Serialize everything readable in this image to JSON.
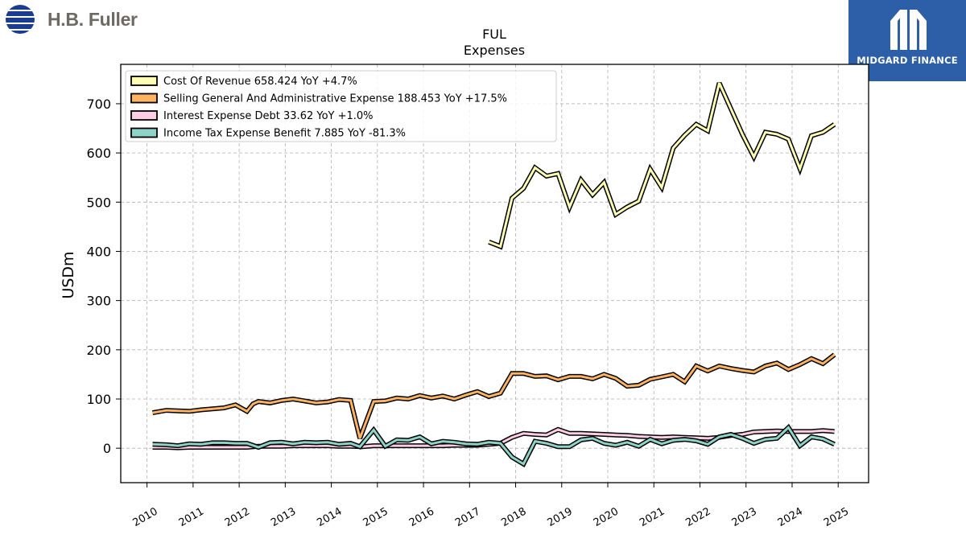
{
  "brand": {
    "name": "H.B. Fuller",
    "badge": "MIDGARD FINANCE",
    "logo_color": "#1a3d8f",
    "badge_color": "#2d5fa8"
  },
  "chart_data": {
    "type": "line",
    "title": "FUL",
    "subtitle": "Expenses",
    "ylabel": "USDm",
    "xlabel": "",
    "xlim": [
      2009.43,
      2025.66
    ],
    "ylim": [
      -70,
      780
    ],
    "yticks": [
      0,
      100,
      200,
      300,
      400,
      500,
      600,
      700
    ],
    "xticks": [
      2010,
      2011,
      2012,
      2013,
      2014,
      2015,
      2016,
      2017,
      2018,
      2019,
      2020,
      2021,
      2022,
      2023,
      2024,
      2025
    ],
    "grid": true,
    "legend_position": "top-left",
    "series": [
      {
        "name": "Cost Of Revenue",
        "legend": "Cost Of Revenue  658.424 YoY +4.7%",
        "color": "#ffffb3",
        "points": [
          [
            2017.42,
            419
          ],
          [
            2017.67,
            410
          ],
          [
            2017.92,
            508
          ],
          [
            2018.17,
            528
          ],
          [
            2018.42,
            570
          ],
          [
            2018.67,
            553
          ],
          [
            2018.92,
            558
          ],
          [
            2019.17,
            490
          ],
          [
            2019.42,
            545
          ],
          [
            2019.67,
            515
          ],
          [
            2019.92,
            540
          ],
          [
            2020.17,
            475
          ],
          [
            2020.42,
            490
          ],
          [
            2020.67,
            502
          ],
          [
            2020.92,
            567
          ],
          [
            2021.17,
            530
          ],
          [
            2021.42,
            610
          ],
          [
            2021.67,
            636
          ],
          [
            2021.92,
            658
          ],
          [
            2022.17,
            645
          ],
          [
            2022.42,
            742
          ],
          [
            2022.67,
            690
          ],
          [
            2022.92,
            638
          ],
          [
            2023.17,
            592
          ],
          [
            2023.42,
            642
          ],
          [
            2023.67,
            638
          ],
          [
            2023.92,
            628
          ],
          [
            2024.17,
            568
          ],
          [
            2024.42,
            635
          ],
          [
            2024.67,
            642
          ],
          [
            2024.92,
            658
          ]
        ]
      },
      {
        "name": "Selling General And Administrative Expense",
        "legend": "Selling General And Administrative Expense  188.453 YoY +17.5%",
        "color": "#fdb462",
        "points": [
          [
            2010.12,
            72
          ],
          [
            2010.42,
            77
          ],
          [
            2010.67,
            76
          ],
          [
            2010.92,
            75
          ],
          [
            2011.17,
            78
          ],
          [
            2011.42,
            80
          ],
          [
            2011.67,
            82
          ],
          [
            2011.92,
            88
          ],
          [
            2012.17,
            75
          ],
          [
            2012.3,
            90
          ],
          [
            2012.42,
            95
          ],
          [
            2012.67,
            92
          ],
          [
            2012.92,
            97
          ],
          [
            2013.17,
            100
          ],
          [
            2013.42,
            96
          ],
          [
            2013.67,
            92
          ],
          [
            2013.92,
            94
          ],
          [
            2014.17,
            99
          ],
          [
            2014.42,
            97
          ],
          [
            2014.62,
            20
          ],
          [
            2014.92,
            95
          ],
          [
            2015.17,
            96
          ],
          [
            2015.42,
            102
          ],
          [
            2015.67,
            100
          ],
          [
            2015.92,
            107
          ],
          [
            2016.17,
            102
          ],
          [
            2016.42,
            106
          ],
          [
            2016.67,
            100
          ],
          [
            2016.92,
            108
          ],
          [
            2017.17,
            115
          ],
          [
            2017.42,
            105
          ],
          [
            2017.67,
            112
          ],
          [
            2017.92,
            152
          ],
          [
            2018.17,
            152
          ],
          [
            2018.42,
            146
          ],
          [
            2018.67,
            147
          ],
          [
            2018.92,
            139
          ],
          [
            2019.17,
            146
          ],
          [
            2019.42,
            146
          ],
          [
            2019.67,
            141
          ],
          [
            2019.92,
            150
          ],
          [
            2020.17,
            142
          ],
          [
            2020.42,
            126
          ],
          [
            2020.67,
            128
          ],
          [
            2020.92,
            140
          ],
          [
            2021.17,
            145
          ],
          [
            2021.42,
            150
          ],
          [
            2021.67,
            135
          ],
          [
            2021.92,
            167
          ],
          [
            2022.17,
            157
          ],
          [
            2022.42,
            167
          ],
          [
            2022.67,
            162
          ],
          [
            2022.92,
            158
          ],
          [
            2023.17,
            155
          ],
          [
            2023.42,
            167
          ],
          [
            2023.67,
            173
          ],
          [
            2023.92,
            160
          ],
          [
            2024.17,
            170
          ],
          [
            2024.42,
            182
          ],
          [
            2024.67,
            172
          ],
          [
            2024.92,
            190
          ]
        ]
      },
      {
        "name": "Interest Expense Debt",
        "legend": "Interest Expense Debt  33.62 YoY +1.0%",
        "color": "#fccde5",
        "points": [
          [
            2010.12,
            2
          ],
          [
            2010.42,
            2
          ],
          [
            2010.67,
            1
          ],
          [
            2010.92,
            2
          ],
          [
            2011.17,
            2
          ],
          [
            2011.42,
            2
          ],
          [
            2011.67,
            2
          ],
          [
            2011.92,
            2
          ],
          [
            2012.17,
            2
          ],
          [
            2012.42,
            4
          ],
          [
            2012.67,
            4
          ],
          [
            2012.92,
            4
          ],
          [
            2013.17,
            5
          ],
          [
            2013.42,
            5
          ],
          [
            2013.67,
            5
          ],
          [
            2013.92,
            5
          ],
          [
            2014.17,
            4
          ],
          [
            2014.42,
            4
          ],
          [
            2014.67,
            3
          ],
          [
            2014.92,
            5
          ],
          [
            2015.17,
            5
          ],
          [
            2015.42,
            5
          ],
          [
            2015.67,
            5
          ],
          [
            2015.92,
            5
          ],
          [
            2016.17,
            5
          ],
          [
            2016.42,
            5
          ],
          [
            2016.67,
            6
          ],
          [
            2016.92,
            6
          ],
          [
            2017.17,
            6
          ],
          [
            2017.42,
            8
          ],
          [
            2017.67,
            10
          ],
          [
            2017.92,
            22
          ],
          [
            2018.17,
            30
          ],
          [
            2018.42,
            28
          ],
          [
            2018.67,
            27
          ],
          [
            2018.92,
            38
          ],
          [
            2019.17,
            30
          ],
          [
            2019.42,
            30
          ],
          [
            2019.67,
            29
          ],
          [
            2019.92,
            28
          ],
          [
            2020.17,
            27
          ],
          [
            2020.42,
            26
          ],
          [
            2020.67,
            24
          ],
          [
            2020.92,
            23
          ],
          [
            2021.17,
            22
          ],
          [
            2021.42,
            23
          ],
          [
            2021.67,
            22
          ],
          [
            2021.92,
            21
          ],
          [
            2022.17,
            20
          ],
          [
            2022.42,
            22
          ],
          [
            2022.67,
            26
          ],
          [
            2022.92,
            28
          ],
          [
            2023.17,
            33
          ],
          [
            2023.42,
            34
          ],
          [
            2023.67,
            35
          ],
          [
            2023.92,
            34
          ],
          [
            2024.17,
            34
          ],
          [
            2024.42,
            34
          ],
          [
            2024.67,
            36
          ],
          [
            2024.92,
            34
          ]
        ]
      },
      {
        "name": "Income Tax Expense Benefit",
        "legend": "Income Tax Expense Benefit  7.885 YoY -81.3%",
        "color": "#8dd3c7",
        "points": [
          [
            2010.12,
            8
          ],
          [
            2010.42,
            7
          ],
          [
            2010.67,
            5
          ],
          [
            2010.92,
            9
          ],
          [
            2011.17,
            8
          ],
          [
            2011.42,
            11
          ],
          [
            2011.67,
            11
          ],
          [
            2011.92,
            10
          ],
          [
            2012.17,
            10
          ],
          [
            2012.42,
            2
          ],
          [
            2012.67,
            11
          ],
          [
            2012.92,
            12
          ],
          [
            2013.17,
            9
          ],
          [
            2013.42,
            12
          ],
          [
            2013.67,
            11
          ],
          [
            2013.92,
            12
          ],
          [
            2014.17,
            8
          ],
          [
            2014.42,
            10
          ],
          [
            2014.62,
            3
          ],
          [
            2014.92,
            37
          ],
          [
            2015.17,
            4
          ],
          [
            2015.42,
            17
          ],
          [
            2015.67,
            16
          ],
          [
            2015.92,
            23
          ],
          [
            2016.17,
            9
          ],
          [
            2016.42,
            14
          ],
          [
            2016.67,
            12
          ],
          [
            2016.92,
            9
          ],
          [
            2017.17,
            8
          ],
          [
            2017.42,
            12
          ],
          [
            2017.67,
            10
          ],
          [
            2017.92,
            -18
          ],
          [
            2018.17,
            -32
          ],
          [
            2018.42,
            14
          ],
          [
            2018.67,
            10
          ],
          [
            2018.92,
            3
          ],
          [
            2019.17,
            3
          ],
          [
            2019.42,
            17
          ],
          [
            2019.67,
            20
          ],
          [
            2019.92,
            10
          ],
          [
            2020.17,
            6
          ],
          [
            2020.42,
            12
          ],
          [
            2020.67,
            4
          ],
          [
            2020.92,
            18
          ],
          [
            2021.17,
            9
          ],
          [
            2021.42,
            16
          ],
          [
            2021.67,
            18
          ],
          [
            2021.92,
            15
          ],
          [
            2022.17,
            8
          ],
          [
            2022.42,
            23
          ],
          [
            2022.67,
            28
          ],
          [
            2022.92,
            20
          ],
          [
            2023.17,
            10
          ],
          [
            2023.42,
            18
          ],
          [
            2023.67,
            20
          ],
          [
            2023.92,
            42
          ],
          [
            2024.17,
            5
          ],
          [
            2024.42,
            23
          ],
          [
            2024.67,
            19
          ],
          [
            2024.92,
            8
          ]
        ]
      }
    ]
  }
}
